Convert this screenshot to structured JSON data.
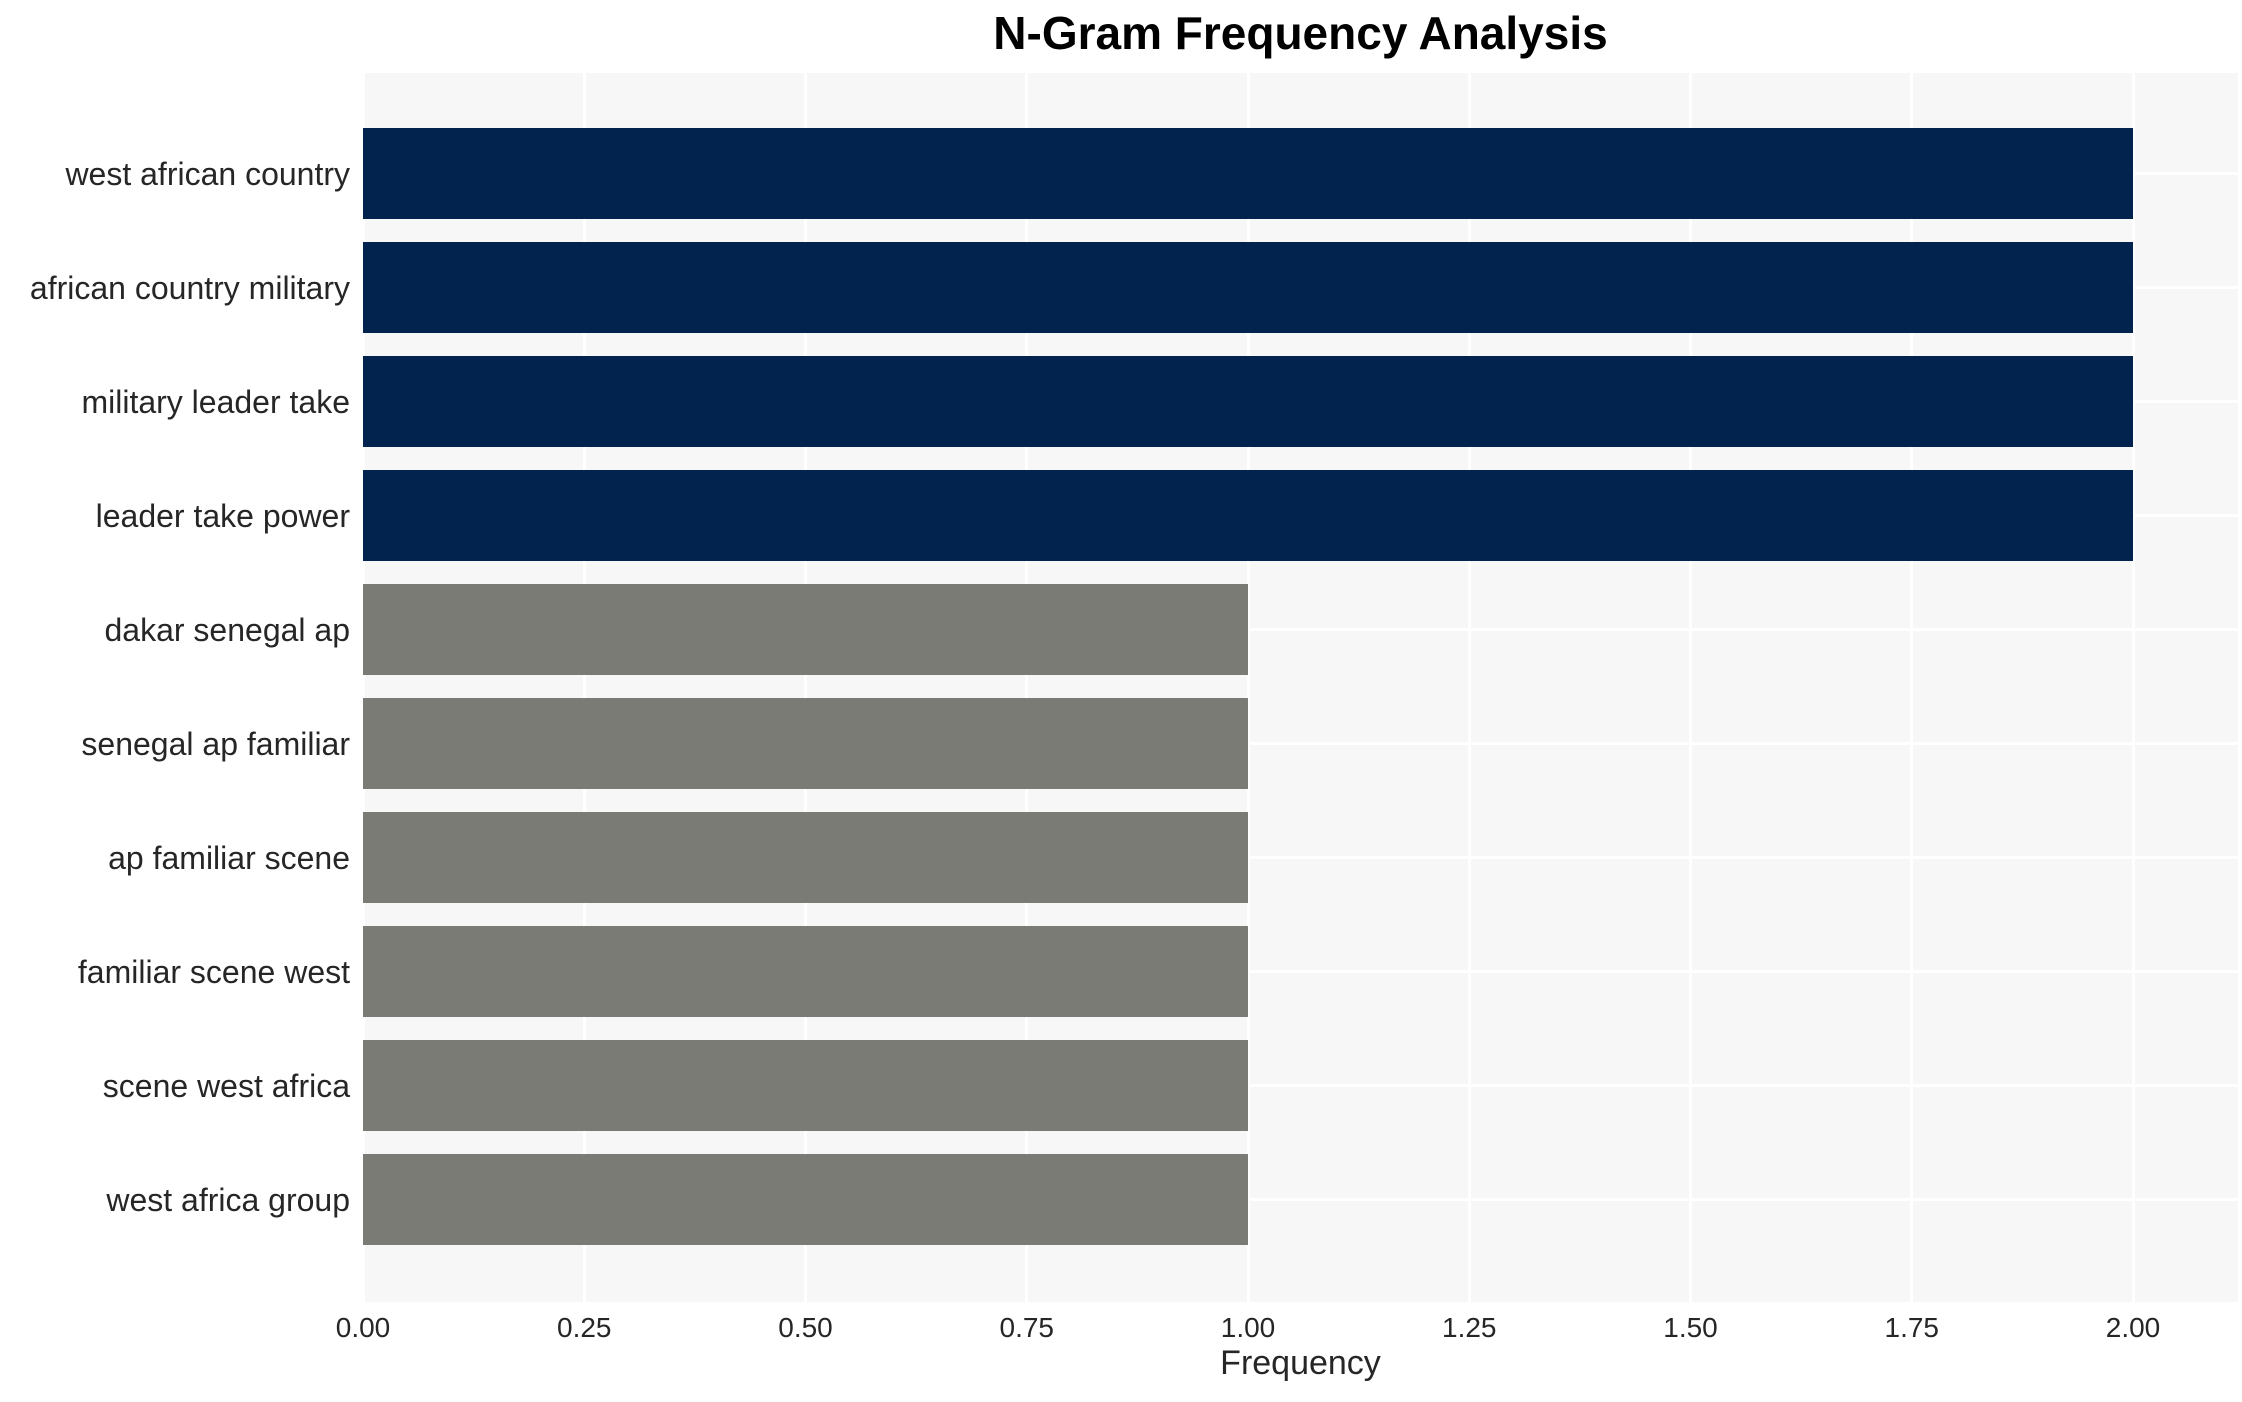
{
  "chart_data": {
    "type": "bar",
    "orientation": "horizontal",
    "title": "N-Gram Frequency Analysis",
    "xlabel": "Frequency",
    "ylabel": "",
    "categories": [
      "west african country",
      "african country military",
      "military leader take",
      "leader take power",
      "dakar senegal ap",
      "senegal ap familiar",
      "ap familiar scene",
      "familiar scene west",
      "scene west africa",
      "west africa group"
    ],
    "values": [
      2,
      2,
      2,
      2,
      1,
      1,
      1,
      1,
      1,
      1
    ],
    "bar_colors": [
      "#02234d",
      "#02234d",
      "#02234d",
      "#02234d",
      "#7b7b76",
      "#7b7b76",
      "#7b7b76",
      "#7b7b76",
      "#7b7b76",
      "#7b7b76"
    ],
    "xticks": [
      {
        "label": "0.00",
        "value": 0.0
      },
      {
        "label": "0.25",
        "value": 0.25
      },
      {
        "label": "0.50",
        "value": 0.5
      },
      {
        "label": "0.75",
        "value": 0.75
      },
      {
        "label": "1.00",
        "value": 1.0
      },
      {
        "label": "1.25",
        "value": 1.25
      },
      {
        "label": "1.50",
        "value": 1.5
      },
      {
        "label": "1.75",
        "value": 1.75
      },
      {
        "label": "2.00",
        "value": 2.0
      }
    ],
    "xlim": [
      0,
      2.12
    ],
    "grid": "white gridlines on light gray plot background, vertical at x ticks and horizontal at bar centers",
    "legend_position": "none",
    "colors": {
      "high_frequency_bar": "#02234d",
      "low_frequency_bar": "#7b7b76",
      "plot_background": "#f7f7f7",
      "grid_line": "#ffffff",
      "tick_text": "#262626",
      "title_text": "#000000"
    }
  }
}
